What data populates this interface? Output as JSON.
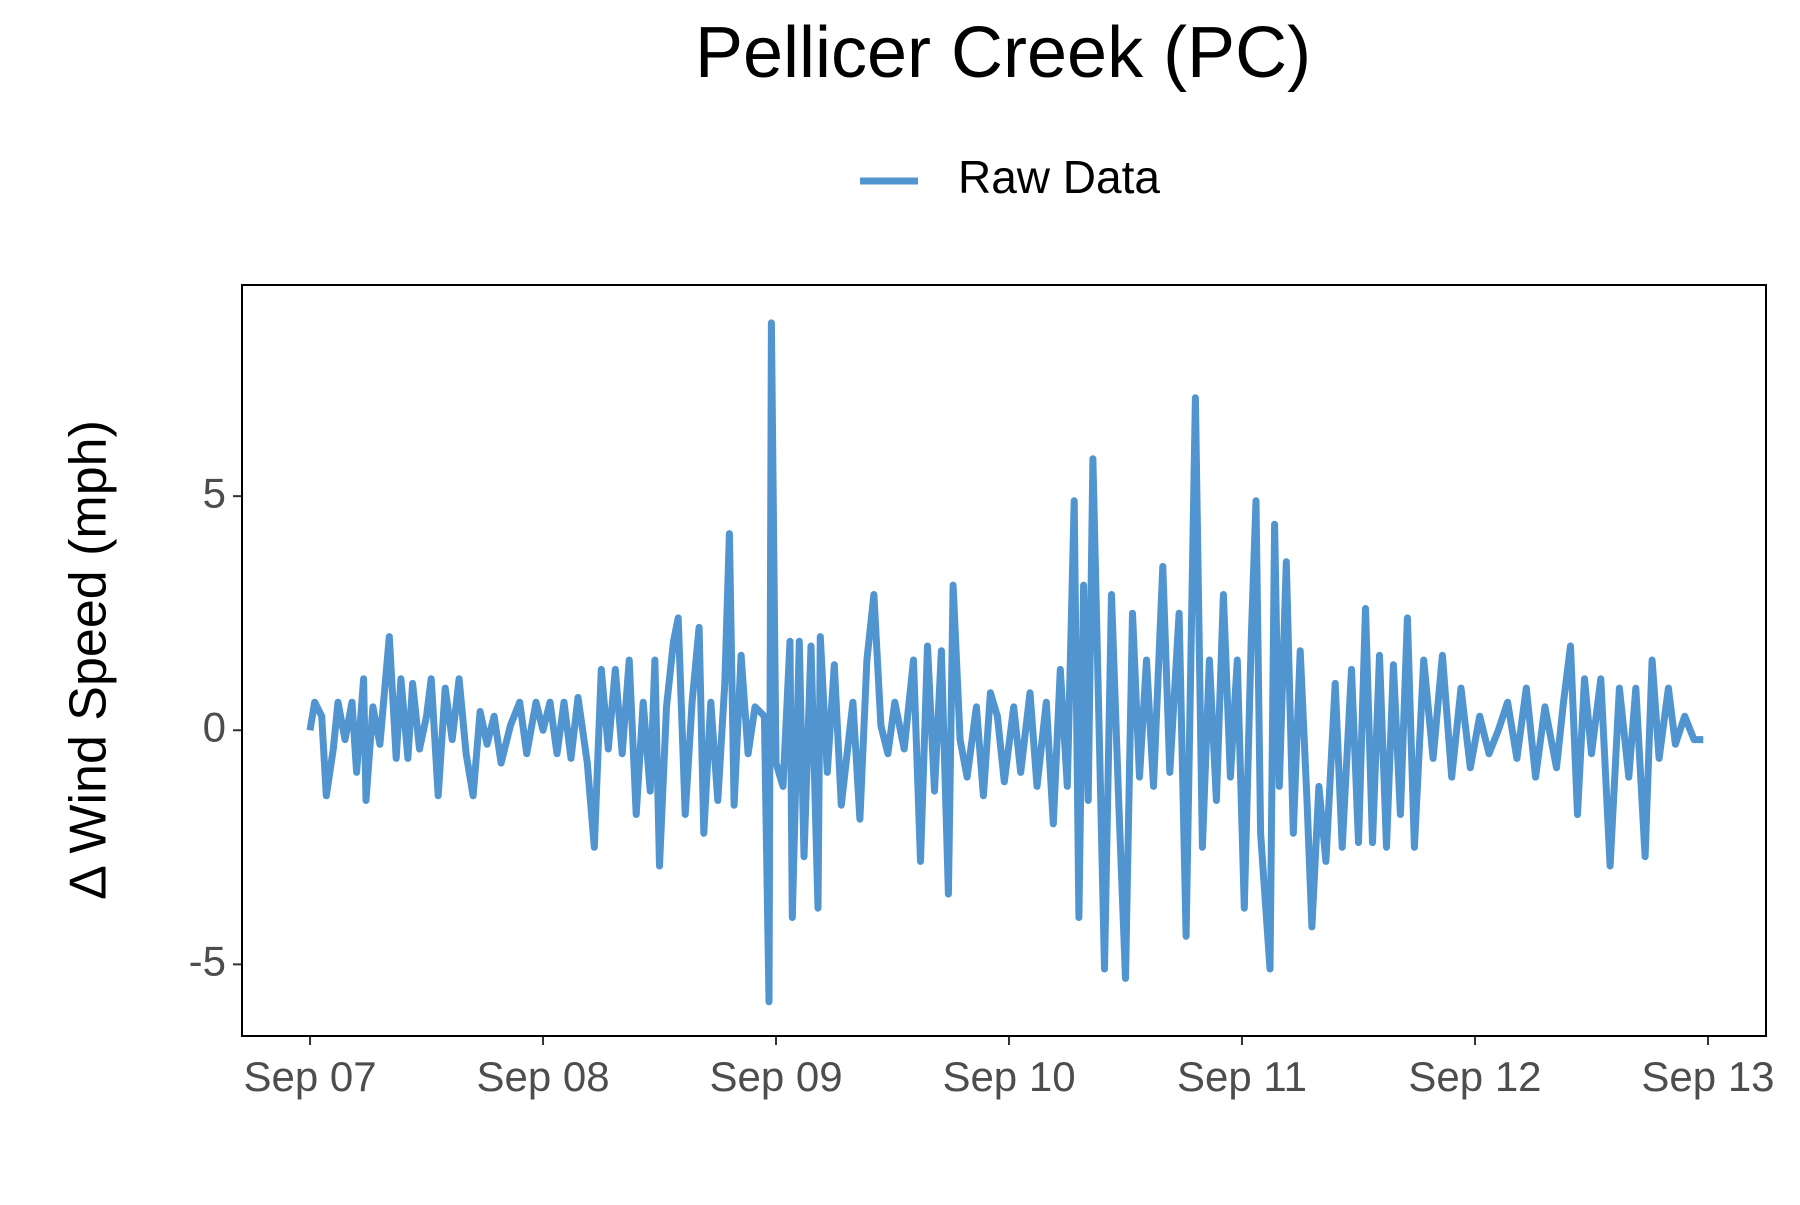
{
  "chart_data": {
    "type": "line",
    "title": "Pellicer Creek (PC)",
    "y_label": "Δ Wind Speed (mph)",
    "legend": "top",
    "x": [
      0.0,
      0.02,
      0.05,
      0.07,
      0.1,
      0.12,
      0.15,
      0.18,
      0.2,
      0.23,
      0.24,
      0.27,
      0.3,
      0.34,
      0.37,
      0.39,
      0.42,
      0.44,
      0.47,
      0.5,
      0.52,
      0.55,
      0.58,
      0.61,
      0.64,
      0.67,
      0.7,
      0.73,
      0.76,
      0.79,
      0.82,
      0.86,
      0.9,
      0.93,
      0.97,
      1.0,
      1.03,
      1.06,
      1.09,
      1.12,
      1.15,
      1.19,
      1.22,
      1.25,
      1.28,
      1.31,
      1.34,
      1.37,
      1.4,
      1.43,
      1.46,
      1.48,
      1.5,
      1.53,
      1.56,
      1.58,
      1.61,
      1.64,
      1.67,
      1.69,
      1.72,
      1.75,
      1.78,
      1.8,
      1.82,
      1.85,
      1.88,
      1.91,
      1.95,
      1.97,
      1.98,
      2.0,
      2.03,
      2.06,
      2.07,
      2.1,
      2.12,
      2.15,
      2.18,
      2.19,
      2.22,
      2.25,
      2.28,
      2.33,
      2.36,
      2.39,
      2.42,
      2.45,
      2.48,
      2.51,
      2.55,
      2.59,
      2.62,
      2.65,
      2.68,
      2.71,
      2.74,
      2.76,
      2.79,
      2.82,
      2.86,
      2.89,
      2.92,
      2.95,
      2.98,
      3.02,
      3.05,
      3.09,
      3.12,
      3.16,
      3.19,
      3.22,
      3.25,
      3.28,
      3.3,
      3.32,
      3.34,
      3.36,
      3.39,
      3.41,
      3.44,
      3.47,
      3.5,
      3.53,
      3.56,
      3.59,
      3.62,
      3.66,
      3.69,
      3.73,
      3.76,
      3.78,
      3.8,
      3.83,
      3.86,
      3.89,
      3.92,
      3.95,
      3.98,
      4.01,
      4.04,
      4.06,
      4.08,
      4.12,
      4.14,
      4.16,
      4.19,
      4.22,
      4.25,
      4.28,
      4.3,
      4.33,
      4.36,
      4.4,
      4.43,
      4.47,
      4.5,
      4.53,
      4.56,
      4.59,
      4.62,
      4.65,
      4.68,
      4.71,
      4.74,
      4.78,
      4.82,
      4.86,
      4.9,
      4.94,
      4.98,
      5.02,
      5.06,
      5.1,
      5.14,
      5.18,
      5.22,
      5.26,
      5.3,
      5.35,
      5.38,
      5.41,
      5.44,
      5.47,
      5.5,
      5.54,
      5.58,
      5.62,
      5.66,
      5.69,
      5.73,
      5.76,
      5.79,
      5.83,
      5.86,
      5.9,
      5.94,
      5.98
    ],
    "series": [
      {
        "name": "Raw Data",
        "color": "#5094d0",
        "values": [
          0.0,
          0.6,
          0.3,
          -1.4,
          -0.4,
          0.6,
          -0.2,
          0.6,
          -0.9,
          1.1,
          -1.5,
          0.5,
          -0.3,
          2.0,
          -0.6,
          1.1,
          -0.6,
          1.0,
          -0.4,
          0.3,
          1.1,
          -1.4,
          0.9,
          -0.2,
          1.1,
          -0.5,
          -1.4,
          0.4,
          -0.3,
          0.3,
          -0.7,
          0.1,
          0.6,
          -0.5,
          0.6,
          0.0,
          0.6,
          -0.5,
          0.6,
          -0.6,
          0.7,
          -0.7,
          -2.5,
          1.3,
          -0.4,
          1.3,
          -0.5,
          1.5,
          -1.8,
          0.6,
          -1.3,
          1.5,
          -2.9,
          0.5,
          1.9,
          2.4,
          -1.8,
          0.6,
          2.2,
          -2.2,
          0.6,
          -1.5,
          1.0,
          4.2,
          -1.6,
          1.6,
          -0.5,
          0.5,
          0.3,
          -5.8,
          8.7,
          -0.7,
          -1.2,
          1.9,
          -4.0,
          1.9,
          -2.7,
          1.8,
          -3.8,
          2.0,
          -0.9,
          1.4,
          -1.6,
          0.6,
          -1.9,
          1.5,
          2.9,
          0.1,
          -0.5,
          0.6,
          -0.4,
          1.5,
          -2.8,
          1.8,
          -1.3,
          1.7,
          -3.5,
          3.1,
          -0.2,
          -1.0,
          0.5,
          -1.4,
          0.8,
          0.3,
          -1.1,
          0.5,
          -0.9,
          0.8,
          -1.2,
          0.6,
          -2.0,
          1.3,
          -1.2,
          4.9,
          -4.0,
          3.1,
          -1.5,
          5.8,
          -0.7,
          -5.1,
          2.9,
          -1.4,
          -5.3,
          2.5,
          -1.0,
          1.5,
          -1.2,
          3.5,
          -0.9,
          2.5,
          -4.4,
          1.3,
          7.1,
          -2.5,
          1.5,
          -1.5,
          2.9,
          -1.0,
          1.5,
          -3.8,
          2.0,
          4.9,
          -2.2,
          -5.1,
          4.4,
          -1.2,
          3.6,
          -2.2,
          1.7,
          -1.6,
          -4.2,
          -1.2,
          -2.8,
          1.0,
          -2.5,
          1.3,
          -2.4,
          2.6,
          -2.4,
          1.6,
          -2.5,
          1.4,
          -1.8,
          2.4,
          -2.5,
          1.5,
          -0.6,
          1.6,
          -1.0,
          0.9,
          -0.8,
          0.3,
          -0.5,
          0.0,
          0.6,
          -0.6,
          0.9,
          -1.0,
          0.5,
          -0.8,
          0.6,
          1.8,
          -1.8,
          1.1,
          -0.5,
          1.1,
          -2.9,
          0.9,
          -1.0,
          0.9,
          -2.7,
          1.5,
          -0.6,
          0.9,
          -0.3,
          0.3,
          -0.2,
          -0.2
        ]
      }
    ],
    "xlim": [
      -0.292,
      6.249
    ],
    "xticks": [
      {
        "value": 0,
        "label": "Sep 07"
      },
      {
        "value": 1,
        "label": "Sep 08"
      },
      {
        "value": 2,
        "label": "Sep 09"
      },
      {
        "value": 3,
        "label": "Sep 10"
      },
      {
        "value": 4,
        "label": "Sep 11"
      },
      {
        "value": 5,
        "label": "Sep 12"
      },
      {
        "value": 6,
        "label": "Sep 13"
      }
    ],
    "ylim": [
      -6.53,
      9.51
    ],
    "yticks": [
      -5,
      0,
      5
    ],
    "grid": false
  }
}
